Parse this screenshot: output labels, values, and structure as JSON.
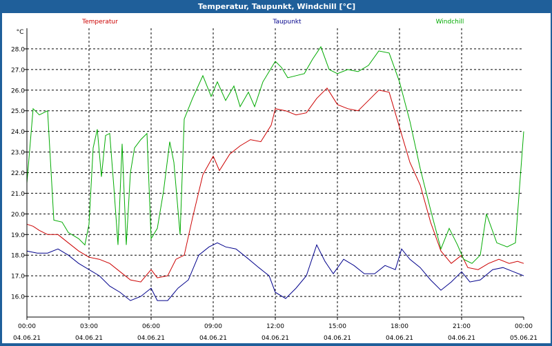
{
  "window": {
    "title": "Temperatur, Taupunkt, Windchill [°C]"
  },
  "chart_data": {
    "type": "line",
    "title": "Temperatur, Taupunkt, Windchill [°C]",
    "ylabel": "°C",
    "ylim": [
      15.0,
      29.0
    ],
    "y_ticks": [
      "16.0",
      "17.0",
      "18.0",
      "19.0",
      "20.0",
      "21.0",
      "22.0",
      "23.0",
      "24.0",
      "25.0",
      "26.0",
      "27.0",
      "28.0"
    ],
    "xlim": [
      0,
      24
    ],
    "x_ticks": [
      {
        "t": 0,
        "time": "00:00",
        "date": "04.06.21"
      },
      {
        "t": 3,
        "time": "03:00",
        "date": "04.06.21"
      },
      {
        "t": 6,
        "time": "06:00",
        "date": "04.06.21"
      },
      {
        "t": 9,
        "time": "09:00",
        "date": "04.06.21"
      },
      {
        "t": 12,
        "time": "12:00",
        "date": "04.06.21"
      },
      {
        "t": 15,
        "time": "15:00",
        "date": "04.06.21"
      },
      {
        "t": 18,
        "time": "18:00",
        "date": "04.06.21"
      },
      {
        "t": 21,
        "time": "21:00",
        "date": "04.06.21"
      },
      {
        "t": 24,
        "time": "00:00",
        "date": "05.06.21"
      }
    ],
    "grid": true,
    "legend_position": "top",
    "series": [
      {
        "name": "Temperatur",
        "color": "#cc0000",
        "points": [
          [
            0,
            19.5
          ],
          [
            0.3,
            19.4
          ],
          [
            0.6,
            19.2
          ],
          [
            1,
            19.0
          ],
          [
            1.5,
            19.0
          ],
          [
            2,
            18.6
          ],
          [
            2.5,
            18.2
          ],
          [
            3,
            17.9
          ],
          [
            3.5,
            17.8
          ],
          [
            4,
            17.6
          ],
          [
            4.5,
            17.2
          ],
          [
            5,
            16.8
          ],
          [
            5.5,
            16.7
          ],
          [
            6,
            17.3
          ],
          [
            6.3,
            16.9
          ],
          [
            6.8,
            17.0
          ],
          [
            7.2,
            17.8
          ],
          [
            7.6,
            18.0
          ],
          [
            8,
            19.8
          ],
          [
            8.5,
            21.9
          ],
          [
            9,
            22.8
          ],
          [
            9.3,
            22.1
          ],
          [
            9.8,
            22.9
          ],
          [
            10.3,
            23.3
          ],
          [
            10.8,
            23.6
          ],
          [
            11.3,
            23.5
          ],
          [
            11.8,
            24.3
          ],
          [
            12,
            25.1
          ],
          [
            12.5,
            25.0
          ],
          [
            13,
            24.8
          ],
          [
            13.5,
            24.9
          ],
          [
            14,
            25.6
          ],
          [
            14.5,
            26.1
          ],
          [
            15,
            25.3
          ],
          [
            15.5,
            25.1
          ],
          [
            16,
            25.0
          ],
          [
            16.5,
            25.5
          ],
          [
            17,
            26.0
          ],
          [
            17.5,
            25.9
          ],
          [
            18,
            24.2
          ],
          [
            18.5,
            22.5
          ],
          [
            19,
            21.4
          ],
          [
            19.5,
            19.6
          ],
          [
            20,
            18.2
          ],
          [
            20.5,
            17.6
          ],
          [
            21,
            18.0
          ],
          [
            21.3,
            17.4
          ],
          [
            21.8,
            17.3
          ],
          [
            22.3,
            17.6
          ],
          [
            22.8,
            17.8
          ],
          [
            23.3,
            17.6
          ],
          [
            23.7,
            17.7
          ],
          [
            24,
            17.6
          ]
        ]
      },
      {
        "name": "Taupunkt",
        "color": "#00008b",
        "points": [
          [
            0,
            18.2
          ],
          [
            0.5,
            18.1
          ],
          [
            1,
            18.1
          ],
          [
            1.5,
            18.3
          ],
          [
            2,
            18.0
          ],
          [
            2.5,
            17.6
          ],
          [
            3,
            17.3
          ],
          [
            3.5,
            17.0
          ],
          [
            4,
            16.5
          ],
          [
            4.5,
            16.2
          ],
          [
            5,
            15.8
          ],
          [
            5.5,
            16.0
          ],
          [
            6,
            16.4
          ],
          [
            6.3,
            15.8
          ],
          [
            6.8,
            15.8
          ],
          [
            7.3,
            16.4
          ],
          [
            7.8,
            16.8
          ],
          [
            8.3,
            18.0
          ],
          [
            8.8,
            18.4
          ],
          [
            9.2,
            18.6
          ],
          [
            9.6,
            18.4
          ],
          [
            10.1,
            18.3
          ],
          [
            10.6,
            17.9
          ],
          [
            11.2,
            17.4
          ],
          [
            11.7,
            17.0
          ],
          [
            12,
            16.2
          ],
          [
            12.5,
            15.9
          ],
          [
            13,
            16.4
          ],
          [
            13.5,
            17.0
          ],
          [
            14,
            18.5
          ],
          [
            14.4,
            17.7
          ],
          [
            14.8,
            17.1
          ],
          [
            15.3,
            17.8
          ],
          [
            15.8,
            17.5
          ],
          [
            16.3,
            17.1
          ],
          [
            16.8,
            17.1
          ],
          [
            17.3,
            17.5
          ],
          [
            17.8,
            17.3
          ],
          [
            18.1,
            18.3
          ],
          [
            18.5,
            17.8
          ],
          [
            19,
            17.4
          ],
          [
            19.5,
            16.8
          ],
          [
            20,
            16.3
          ],
          [
            20.5,
            16.7
          ],
          [
            21,
            17.2
          ],
          [
            21.4,
            16.7
          ],
          [
            21.9,
            16.8
          ],
          [
            22.5,
            17.3
          ],
          [
            23,
            17.4
          ],
          [
            23.5,
            17.2
          ],
          [
            24,
            17.0
          ]
        ]
      },
      {
        "name": "Windchill",
        "color": "#00aa00",
        "points": [
          [
            0,
            21.5
          ],
          [
            0.3,
            25.1
          ],
          [
            0.6,
            24.8
          ],
          [
            1,
            25.0
          ],
          [
            1.3,
            19.7
          ],
          [
            1.7,
            19.6
          ],
          [
            2,
            19.1
          ],
          [
            2.5,
            18.8
          ],
          [
            2.8,
            18.5
          ],
          [
            3,
            19.5
          ],
          [
            3.2,
            23.2
          ],
          [
            3.4,
            24.1
          ],
          [
            3.6,
            21.8
          ],
          [
            3.8,
            23.8
          ],
          [
            4,
            23.9
          ],
          [
            4.2,
            21.3
          ],
          [
            4.4,
            18.5
          ],
          [
            4.6,
            23.4
          ],
          [
            4.8,
            18.5
          ],
          [
            5,
            22.0
          ],
          [
            5.2,
            23.2
          ],
          [
            5.5,
            23.6
          ],
          [
            5.8,
            23.9
          ],
          [
            6,
            18.8
          ],
          [
            6.3,
            19.3
          ],
          [
            6.6,
            21.1
          ],
          [
            6.9,
            23.5
          ],
          [
            7.1,
            22.5
          ],
          [
            7.4,
            19.0
          ],
          [
            7.6,
            24.6
          ],
          [
            8,
            25.6
          ],
          [
            8.5,
            26.7
          ],
          [
            8.9,
            25.7
          ],
          [
            9.2,
            26.4
          ],
          [
            9.6,
            25.5
          ],
          [
            10,
            26.2
          ],
          [
            10.3,
            25.2
          ],
          [
            10.7,
            25.9
          ],
          [
            11,
            25.2
          ],
          [
            11.4,
            26.4
          ],
          [
            11.7,
            26.9
          ],
          [
            12,
            27.4
          ],
          [
            12.3,
            27.1
          ],
          [
            12.6,
            26.6
          ],
          [
            13,
            26.7
          ],
          [
            13.4,
            26.8
          ],
          [
            13.8,
            27.5
          ],
          [
            14.2,
            28.1
          ],
          [
            14.6,
            27.0
          ],
          [
            15,
            26.8
          ],
          [
            15.5,
            27.0
          ],
          [
            16,
            26.9
          ],
          [
            16.5,
            27.2
          ],
          [
            17,
            27.9
          ],
          [
            17.5,
            27.8
          ],
          [
            18,
            26.4
          ],
          [
            18.5,
            24.5
          ],
          [
            19,
            22.2
          ],
          [
            19.5,
            20.2
          ],
          [
            20,
            18.3
          ],
          [
            20.4,
            19.3
          ],
          [
            20.8,
            18.5
          ],
          [
            21.1,
            17.8
          ],
          [
            21.5,
            17.6
          ],
          [
            21.9,
            18.0
          ],
          [
            22.2,
            20.0
          ],
          [
            22.7,
            18.6
          ],
          [
            23.2,
            18.4
          ],
          [
            23.6,
            18.6
          ],
          [
            24,
            24.0
          ]
        ]
      }
    ]
  }
}
